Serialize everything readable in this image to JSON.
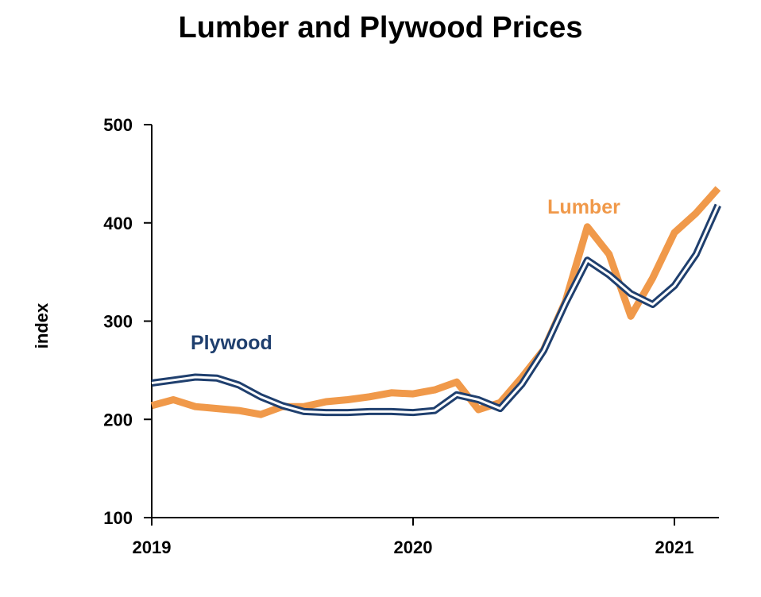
{
  "chart_data": {
    "type": "line",
    "title": "Lumber and Plywood Prices",
    "ylabel": "index",
    "xlabel": "",
    "ylim": [
      100,
      500
    ],
    "xlim": [
      2019,
      2021.17
    ],
    "yticks": [
      100,
      200,
      300,
      400,
      500
    ],
    "xticks": [
      2019,
      2020,
      2021
    ],
    "grid": false,
    "series": [
      {
        "name": "Lumber",
        "color": "#F0994A",
        "x": [
          2019.0,
          2019.083,
          2019.167,
          2019.25,
          2019.333,
          2019.417,
          2019.5,
          2019.583,
          2019.667,
          2019.75,
          2019.833,
          2019.917,
          2020.0,
          2020.083,
          2020.167,
          2020.25,
          2020.333,
          2020.417,
          2020.5,
          2020.583,
          2020.667,
          2020.75,
          2020.833,
          2020.917,
          2021.0,
          2021.083,
          2021.167
        ],
        "values": [
          214,
          220,
          213,
          211,
          209,
          205,
          213,
          213,
          218,
          220,
          223,
          227,
          226,
          230,
          238,
          210,
          217,
          243,
          271,
          320,
          396,
          368,
          305,
          344,
          390,
          410,
          435
        ]
      },
      {
        "name": "Plywood",
        "color": "#1F3F6E",
        "x": [
          2019.0,
          2019.083,
          2019.167,
          2019.25,
          2019.333,
          2019.417,
          2019.5,
          2019.583,
          2019.667,
          2019.75,
          2019.833,
          2019.917,
          2020.0,
          2020.083,
          2020.167,
          2020.25,
          2020.333,
          2020.417,
          2020.5,
          2020.583,
          2020.667,
          2020.75,
          2020.833,
          2020.917,
          2021.0,
          2021.083,
          2021.167
        ],
        "values": [
          237,
          240,
          243,
          242,
          235,
          223,
          214,
          208,
          207,
          207,
          208,
          208,
          207,
          209,
          225,
          220,
          211,
          236,
          270,
          318,
          362,
          347,
          328,
          317,
          336,
          368,
          418
        ]
      }
    ]
  }
}
